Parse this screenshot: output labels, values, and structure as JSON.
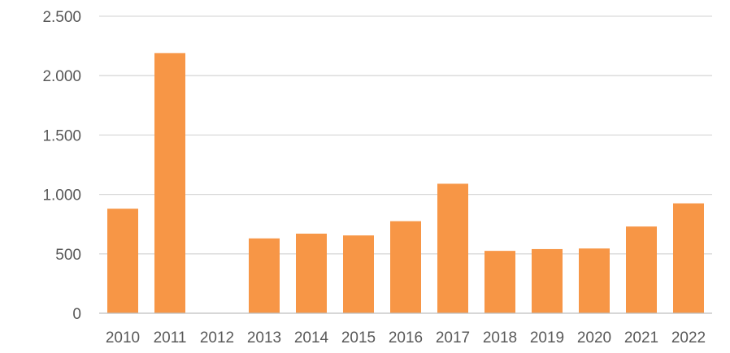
{
  "chart_data": {
    "type": "bar",
    "title": "",
    "xlabel": "",
    "ylabel": "",
    "categories": [
      "2010",
      "2011",
      "2012",
      "2013",
      "2014",
      "2015",
      "2016",
      "2017",
      "2018",
      "2019",
      "2020",
      "2021",
      "2022"
    ],
    "values": [
      880,
      2190,
      0,
      630,
      670,
      655,
      775,
      1090,
      525,
      540,
      545,
      730,
      925
    ],
    "ylim": [
      0,
      2500
    ],
    "yticks": [
      0,
      500,
      1000,
      1500,
      2000,
      2500
    ],
    "ytick_labels": [
      "0",
      "500",
      "1.000",
      "1.500",
      "2.000",
      "2.500"
    ],
    "grid": true,
    "legend": "none",
    "bar_color": "#F79646",
    "grid_color": "#D9D9D9",
    "text_color": "#595959"
  }
}
